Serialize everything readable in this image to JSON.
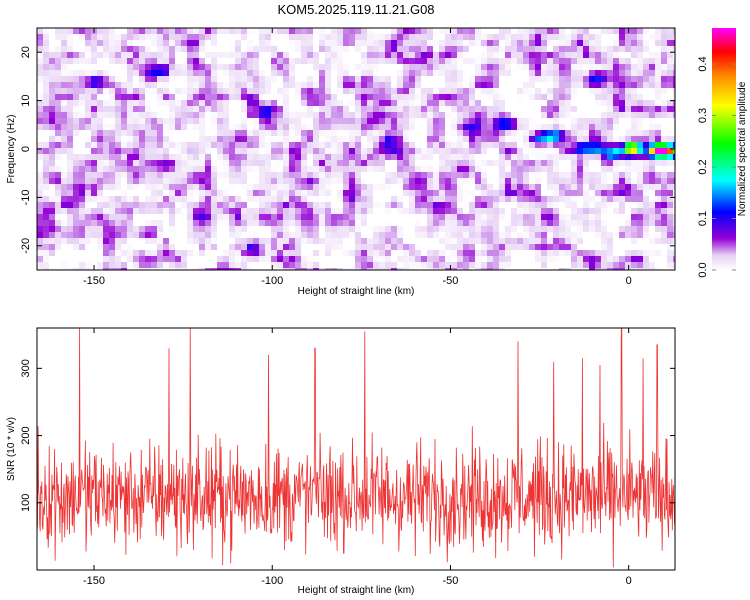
{
  "title": "KOM5.2025.119.11.21.G08",
  "chart_data": [
    {
      "type": "heatmap",
      "title": "KOM5.2025.119.11.21.G08",
      "xlabel": "Height of straight line (km)",
      "ylabel": "Frequency (Hz)",
      "xlim": [
        -166,
        13
      ],
      "ylim": [
        -25,
        25
      ],
      "x_ticks": [
        -150,
        -100,
        -50,
        0
      ],
      "y_ticks": [
        -20,
        -10,
        0,
        10,
        20
      ],
      "colorbar": {
        "label": "Normalized spectral amplitude",
        "range": [
          0.0,
          0.47
        ],
        "ticks": [
          0.0,
          0.1,
          0.2,
          0.3,
          0.4
        ],
        "colors": [
          "#ffffff",
          "#9400d3",
          "#0000ff",
          "#00ffff",
          "#00ff00",
          "#ffff00",
          "#ff8c00",
          "#ff0000",
          "#ff00ff"
        ]
      },
      "background_level": 0.05,
      "strong_features": [
        {
          "x": 7,
          "y": 0,
          "value": 0.45
        },
        {
          "x": 0,
          "y": 0.5,
          "value": 0.35
        },
        {
          "x": 11,
          "y": 0,
          "value": 0.3
        },
        {
          "x": -5,
          "y": -0.5,
          "value": 0.16
        },
        {
          "x": -10,
          "y": 0.5,
          "value": 0.14
        },
        {
          "x": -14,
          "y": 0.5,
          "value": 0.14
        },
        {
          "x": -22,
          "y": 3,
          "value": 0.14
        },
        {
          "x": -26,
          "y": 2.5,
          "value": 0.12
        },
        {
          "x": -36,
          "y": 5.5,
          "value": 0.1
        },
        {
          "x": -46,
          "y": 5,
          "value": 0.09
        },
        {
          "x": -67,
          "y": 2,
          "value": 0.09
        },
        {
          "x": -150,
          "y": 14,
          "value": 0.09
        },
        {
          "x": -132,
          "y": 16,
          "value": 0.08
        },
        {
          "x": -102,
          "y": 8,
          "value": 0.08
        },
        {
          "x": -47,
          "y": -4,
          "value": 0.07
        },
        {
          "x": -90,
          "y": -6,
          "value": 0.07
        },
        {
          "x": -105,
          "y": -20,
          "value": 0.07
        },
        {
          "x": -120,
          "y": -13,
          "value": 0.07
        },
        {
          "x": -10,
          "y": 15,
          "value": 0.07
        }
      ]
    },
    {
      "type": "line",
      "xlabel": "Height of straight line (km)",
      "ylabel": "SNR (10 * v/v)",
      "xlim": [
        -166,
        13
      ],
      "ylim": [
        0,
        360
      ],
      "x_ticks": [
        -150,
        -100,
        -50,
        0
      ],
      "y_ticks": [
        100,
        200,
        300
      ],
      "color": "#ee3333",
      "points_count": 1200,
      "mean": 110,
      "spread": 70,
      "peaks": [
        {
          "x": -154,
          "y": 360
        },
        {
          "x": -123,
          "y": 360
        },
        {
          "x": -74,
          "y": 355
        },
        {
          "x": -2,
          "y": 360
        },
        {
          "x": -129,
          "y": 330
        },
        {
          "x": -88,
          "y": 330
        },
        {
          "x": -101,
          "y": 320
        },
        {
          "x": -31,
          "y": 340
        },
        {
          "x": -21,
          "y": 310
        },
        {
          "x": 4,
          "y": 315
        },
        {
          "x": 8,
          "y": 335
        },
        {
          "x": -8,
          "y": 305
        },
        {
          "x": -13,
          "y": 315
        }
      ]
    }
  ]
}
